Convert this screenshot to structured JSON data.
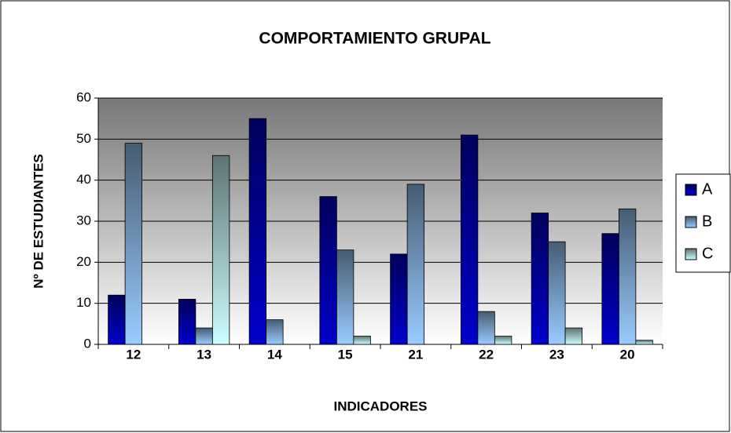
{
  "chart_data": {
    "type": "bar",
    "title": "COMPORTAMIENTO GRUPAL",
    "x_label": "INDICADORES",
    "y_label": "Nº DE ESTUDIANTES",
    "categories": [
      "12",
      "13",
      "14",
      "15",
      "21",
      "22",
      "23",
      "20"
    ],
    "series": [
      {
        "name": "A",
        "color": "#0000cc",
        "values": [
          12,
          11,
          55,
          36,
          22,
          51,
          32,
          27
        ]
      },
      {
        "name": "B",
        "color": "#99ccff",
        "values": [
          49,
          4,
          6,
          23,
          39,
          8,
          25,
          33
        ]
      },
      {
        "name": "C",
        "color": "#ccffff",
        "values": [
          0,
          46,
          0,
          2,
          0,
          2,
          4,
          1
        ]
      }
    ],
    "ylim": [
      0,
      60
    ],
    "yticks": [
      0,
      10,
      20,
      30,
      40,
      50,
      60
    ],
    "grid": true,
    "legend": "right"
  }
}
